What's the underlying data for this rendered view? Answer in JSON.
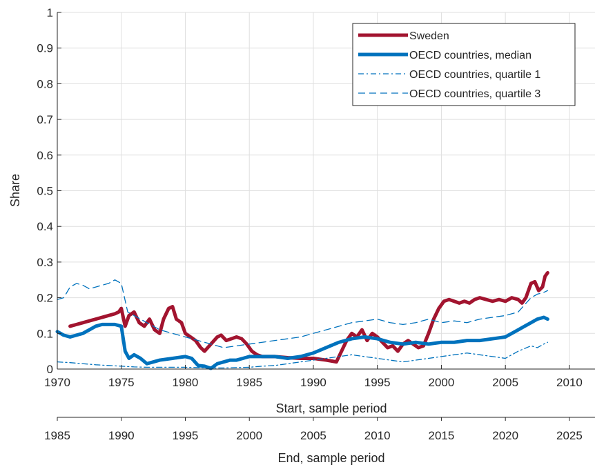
{
  "chart_data": {
    "type": "line",
    "xlabel": "Start, sample period",
    "x2label": "End, sample period",
    "ylabel": "Share",
    "xlim": [
      1970,
      2012
    ],
    "x2offset": 15,
    "ylim": [
      0,
      1
    ],
    "xticks": [
      1970,
      1975,
      1980,
      1985,
      1990,
      1995,
      2000,
      2005,
      2010
    ],
    "x2ticks": [
      1985,
      1990,
      1995,
      2000,
      2005,
      2010,
      2015,
      2020,
      2025
    ],
    "yticks": [
      0,
      0.1,
      0.2,
      0.3,
      0.4,
      0.5,
      0.6,
      0.7,
      0.8,
      0.9,
      1
    ],
    "yticklabels": [
      "0",
      "0.1",
      "0.2",
      "0.3",
      "0.4",
      "0.5",
      "0.6",
      "0.7",
      "0.8",
      "0.9",
      "1"
    ],
    "grid": true,
    "legend_position": "top-right",
    "series": [
      {
        "name": "Sweden",
        "color": "#a2142f",
        "style": "solid",
        "weight": "thick",
        "x": [
          1971.0,
          1971.5,
          1972.0,
          1972.5,
          1973.0,
          1973.5,
          1974.0,
          1974.5,
          1974.8,
          1975.0,
          1975.3,
          1975.6,
          1976.0,
          1976.4,
          1976.8,
          1977.2,
          1977.6,
          1978.0,
          1978.3,
          1978.7,
          1979.0,
          1979.3,
          1979.7,
          1980.0,
          1980.4,
          1980.8,
          1981.2,
          1981.5,
          1982.0,
          1982.5,
          1982.8,
          1983.2,
          1983.6,
          1984.0,
          1984.4,
          1984.8,
          1985.2,
          1985.6,
          1986.0,
          1987.0,
          1988.0,
          1989.0,
          1990.0,
          1991.0,
          1991.5,
          1991.8,
          1992.2,
          1992.6,
          1993.0,
          1993.4,
          1993.8,
          1994.2,
          1994.6,
          1995.0,
          1995.4,
          1995.8,
          1996.2,
          1996.6,
          1997.0,
          1997.4,
          1997.8,
          1998.2,
          1998.6,
          1999.0,
          1999.4,
          1999.8,
          2000.2,
          2000.6,
          2001.0,
          2001.4,
          2001.8,
          2002.2,
          2002.6,
          2003.0,
          2003.5,
          2004.0,
          2004.5,
          2005.0,
          2005.5,
          2006.0,
          2006.3,
          2006.6,
          2007.0,
          2007.3,
          2007.6,
          2007.9,
          2008.1,
          2008.3
        ],
        "y": [
          0.12,
          0.125,
          0.13,
          0.135,
          0.14,
          0.145,
          0.15,
          0.155,
          0.16,
          0.17,
          0.12,
          0.15,
          0.16,
          0.13,
          0.12,
          0.14,
          0.11,
          0.1,
          0.14,
          0.17,
          0.175,
          0.14,
          0.13,
          0.1,
          0.09,
          0.08,
          0.06,
          0.05,
          0.07,
          0.09,
          0.095,
          0.08,
          0.085,
          0.09,
          0.085,
          0.07,
          0.05,
          0.04,
          0.035,
          0.035,
          0.032,
          0.03,
          0.03,
          0.025,
          0.022,
          0.02,
          0.05,
          0.08,
          0.1,
          0.09,
          0.11,
          0.08,
          0.1,
          0.09,
          0.075,
          0.06,
          0.065,
          0.05,
          0.07,
          0.08,
          0.07,
          0.06,
          0.065,
          0.1,
          0.14,
          0.17,
          0.19,
          0.195,
          0.19,
          0.185,
          0.19,
          0.185,
          0.195,
          0.2,
          0.195,
          0.19,
          0.195,
          0.19,
          0.2,
          0.195,
          0.185,
          0.2,
          0.24,
          0.245,
          0.22,
          0.23,
          0.26,
          0.27
        ]
      },
      {
        "name": "OECD countries, median",
        "color": "#0072bd",
        "style": "solid",
        "weight": "thick",
        "x": [
          1970.0,
          1970.5,
          1971.0,
          1971.5,
          1972.0,
          1972.5,
          1973.0,
          1973.5,
          1974.0,
          1974.5,
          1975.0,
          1975.3,
          1975.6,
          1976.0,
          1976.5,
          1977.0,
          1977.5,
          1978.0,
          1979.0,
          1980.0,
          1980.5,
          1981.0,
          1981.5,
          1982.0,
          1982.5,
          1983.0,
          1983.5,
          1984.0,
          1984.5,
          1985.0,
          1986.0,
          1987.0,
          1988.0,
          1989.0,
          1990.0,
          1991.0,
          1992.0,
          1993.0,
          1994.0,
          1995.0,
          1996.0,
          1997.0,
          1998.0,
          1999.0,
          2000.0,
          2001.0,
          2002.0,
          2003.0,
          2004.0,
          2005.0,
          2005.5,
          2006.0,
          2006.5,
          2007.0,
          2007.5,
          2008.0,
          2008.3
        ],
        "y": [
          0.105,
          0.095,
          0.09,
          0.095,
          0.1,
          0.11,
          0.12,
          0.125,
          0.125,
          0.125,
          0.12,
          0.05,
          0.03,
          0.04,
          0.03,
          0.015,
          0.02,
          0.025,
          0.03,
          0.035,
          0.03,
          0.01,
          0.008,
          0.002,
          0.015,
          0.02,
          0.025,
          0.025,
          0.03,
          0.035,
          0.035,
          0.035,
          0.03,
          0.035,
          0.045,
          0.06,
          0.075,
          0.085,
          0.09,
          0.085,
          0.075,
          0.07,
          0.075,
          0.07,
          0.075,
          0.075,
          0.08,
          0.08,
          0.085,
          0.09,
          0.1,
          0.11,
          0.12,
          0.13,
          0.14,
          0.145,
          0.14
        ]
      },
      {
        "name": "OECD countries, quartile 1",
        "color": "#0072bd",
        "style": "dashdot",
        "weight": "thin",
        "x": [
          1970.0,
          1971.0,
          1972.0,
          1973.0,
          1974.0,
          1975.0,
          1976.0,
          1977.0,
          1978.0,
          1979.0,
          1980.0,
          1981.0,
          1982.0,
          1983.0,
          1984.0,
          1985.0,
          1986.0,
          1987.0,
          1988.0,
          1989.0,
          1990.0,
          1991.0,
          1992.0,
          1993.0,
          1994.0,
          1995.0,
          1996.0,
          1997.0,
          1998.0,
          1999.0,
          2000.0,
          2001.0,
          2002.0,
          2003.0,
          2004.0,
          2005.0,
          2006.0,
          2007.0,
          2007.5,
          2008.0,
          2008.3
        ],
        "y": [
          0.02,
          0.018,
          0.015,
          0.012,
          0.01,
          0.008,
          0.006,
          0.005,
          0.005,
          0.005,
          0.005,
          0.004,
          0.003,
          0.003,
          0.004,
          0.005,
          0.008,
          0.01,
          0.015,
          0.02,
          0.025,
          0.03,
          0.035,
          0.04,
          0.035,
          0.03,
          0.025,
          0.02,
          0.025,
          0.03,
          0.035,
          0.04,
          0.045,
          0.04,
          0.035,
          0.03,
          0.05,
          0.065,
          0.06,
          0.07,
          0.075
        ]
      },
      {
        "name": "OECD countries, quartile 3",
        "color": "#0072bd",
        "style": "dashed",
        "weight": "thin",
        "x": [
          1970.0,
          1970.5,
          1971.0,
          1971.5,
          1972.0,
          1972.5,
          1973.0,
          1973.5,
          1974.0,
          1974.5,
          1975.0,
          1975.5,
          1976.0,
          1977.0,
          1978.0,
          1979.0,
          1980.0,
          1981.0,
          1982.0,
          1983.0,
          1984.0,
          1985.0,
          1986.0,
          1987.0,
          1988.0,
          1989.0,
          1990.0,
          1991.0,
          1992.0,
          1993.0,
          1994.0,
          1995.0,
          1996.0,
          1997.0,
          1998.0,
          1999.0,
          2000.0,
          2001.0,
          2002.0,
          2003.0,
          2004.0,
          2005.0,
          2006.0,
          2007.0,
          2007.5,
          2008.0,
          2008.3
        ],
        "y": [
          0.195,
          0.2,
          0.23,
          0.24,
          0.235,
          0.225,
          0.23,
          0.235,
          0.24,
          0.25,
          0.24,
          0.16,
          0.15,
          0.13,
          0.11,
          0.1,
          0.09,
          0.08,
          0.07,
          0.06,
          0.065,
          0.07,
          0.075,
          0.08,
          0.085,
          0.09,
          0.1,
          0.11,
          0.12,
          0.13,
          0.135,
          0.14,
          0.13,
          0.125,
          0.13,
          0.14,
          0.13,
          0.135,
          0.13,
          0.14,
          0.145,
          0.15,
          0.16,
          0.2,
          0.21,
          0.215,
          0.22
        ]
      }
    ]
  }
}
